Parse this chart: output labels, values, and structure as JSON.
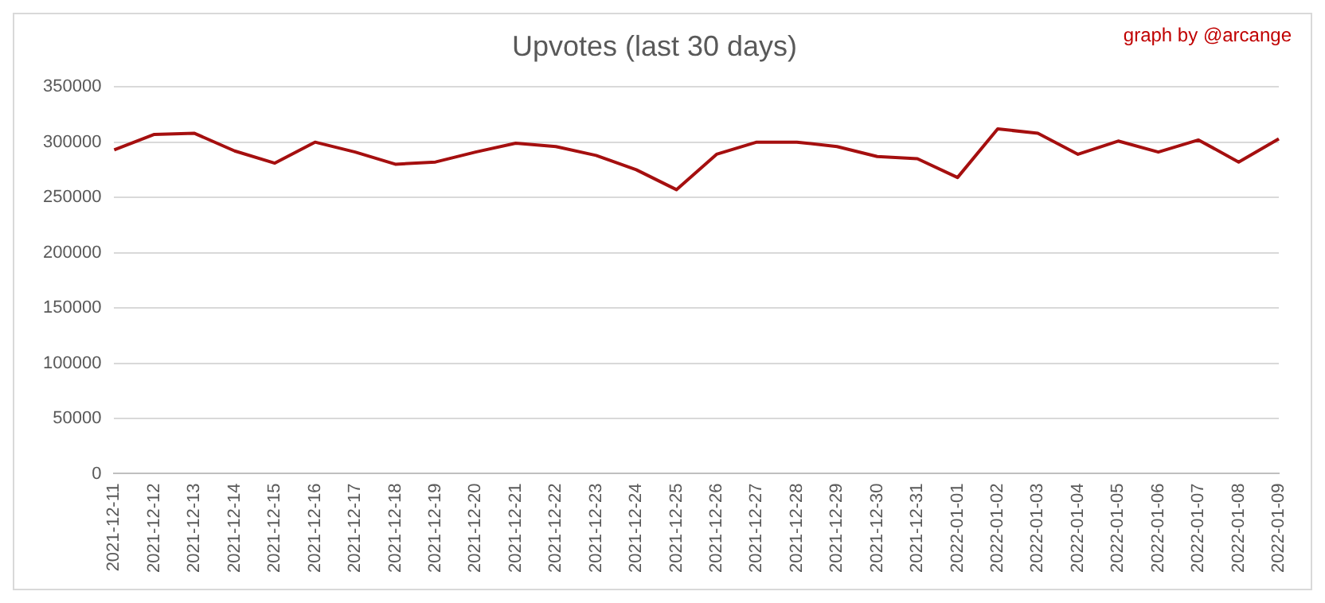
{
  "chart_data": {
    "type": "line",
    "title": "Upvotes (last 30 days)",
    "annotations": [
      "graph by @arcange"
    ],
    "categories": [
      "2021-12-11",
      "2021-12-12",
      "2021-12-13",
      "2021-12-14",
      "2021-12-15",
      "2021-12-16",
      "2021-12-17",
      "2021-12-18",
      "2021-12-19",
      "2021-12-20",
      "2021-12-21",
      "2021-12-22",
      "2021-12-23",
      "2021-12-24",
      "2021-12-25",
      "2021-12-26",
      "2021-12-27",
      "2021-12-28",
      "2021-12-29",
      "2021-12-30",
      "2021-12-31",
      "2022-01-01",
      "2022-01-02",
      "2022-01-03",
      "2022-01-04",
      "2022-01-05",
      "2022-01-06",
      "2022-01-07",
      "2022-01-08",
      "2022-01-09"
    ],
    "series": [
      {
        "color": "#a50f0f",
        "values": [
          293000,
          307000,
          308000,
          292000,
          281000,
          300000,
          291000,
          280000,
          282000,
          291000,
          299000,
          296000,
          288000,
          275000,
          257000,
          289000,
          300000,
          300000,
          296000,
          287000,
          285000,
          268000,
          312000,
          308000,
          289000,
          301000,
          291000,
          302000,
          282000,
          303000
        ]
      }
    ],
    "ylim": [
      0,
      350000
    ],
    "yticks": [
      0,
      50000,
      100000,
      150000,
      200000,
      250000,
      300000,
      350000
    ],
    "grid": "y",
    "legend": false,
    "marker": "none",
    "line_style": "solid"
  }
}
